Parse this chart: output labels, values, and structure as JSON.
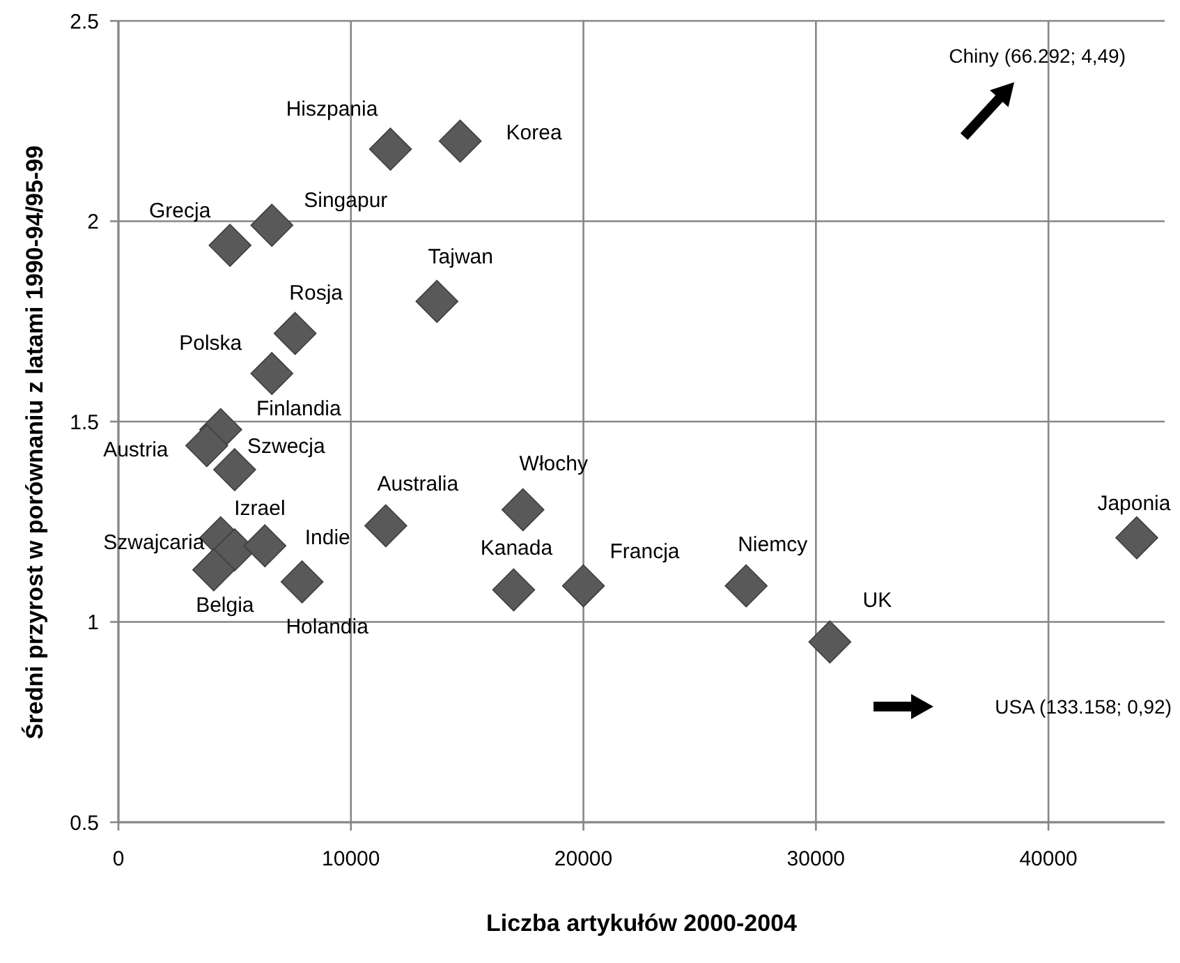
{
  "chart_data": {
    "type": "scatter",
    "xlabel": "Liczba artykułów 2000-2004",
    "ylabel": "Średni przyrost w porównaniu z latami 1990-94/95-99",
    "xlim": [
      0,
      45000
    ],
    "xticks": [
      0,
      10000,
      20000,
      30000,
      40000
    ],
    "ylim": [
      0.5,
      2.5
    ],
    "yticks": [
      0.5,
      1,
      1.5,
      2,
      2.5
    ],
    "grid": true,
    "marker": "diamond",
    "series": [
      {
        "color": "#595959",
        "x": [
          11700,
          14700,
          4800,
          6600,
          13700,
          7600,
          6600,
          4400,
          3800,
          5000,
          4400,
          5000,
          6300,
          4100,
          7900,
          11500,
          17400,
          17000,
          20000,
          27000,
          30600,
          43800
        ],
        "values": [
          2.18,
          2.2,
          1.94,
          1.99,
          1.8,
          1.72,
          1.62,
          1.48,
          1.44,
          1.38,
          1.21,
          1.18,
          1.19,
          1.13,
          1.1,
          1.24,
          1.28,
          1.08,
          1.09,
          1.09,
          0.95,
          1.21
        ],
        "value_labels": [
          "Hiszpania",
          "Korea",
          "Grecja",
          "Singapur",
          "Tajwan",
          "Rosja",
          "Polska",
          "Finlandia",
          "Austria",
          "Szwecja",
          "Szwajcaria",
          "Izrael",
          "Indie",
          "Belgia",
          "Holandia",
          "Australia",
          "Włochy",
          "Kanada",
          "Francja",
          "Niemcy",
          "UK",
          "Japonia"
        ]
      }
    ],
    "annotations": [
      "Chiny (66.292; 4,49)",
      "USA (133.158; 0,92)"
    ]
  }
}
